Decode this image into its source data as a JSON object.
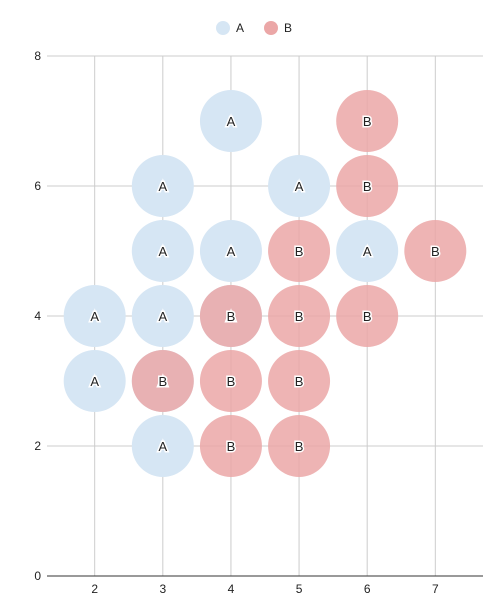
{
  "colors": {
    "A": "#d6e6f4",
    "B": "#eba7a7",
    "B_overlap": "#e6a2a3",
    "grid": "#cccccc",
    "axis": "#333333"
  },
  "legend": {
    "position": "top-center",
    "items": [
      {
        "name": "A",
        "color": "#d6e6f4"
      },
      {
        "name": "B",
        "color": "#eba7a7"
      }
    ]
  },
  "chart_data": {
    "type": "scatter",
    "title": "",
    "xlabel": "",
    "ylabel": "",
    "xlim": [
      1.3,
      7.7
    ],
    "ylim": [
      0,
      8
    ],
    "x_ticks": [
      2,
      3,
      4,
      5,
      6,
      7
    ],
    "y_ticks": [
      0,
      2,
      4,
      6,
      8
    ],
    "grid": true,
    "legend_position": "top-center",
    "series": [
      {
        "name": "A",
        "points": [
          {
            "x": 4,
            "y": 7,
            "label": "A"
          },
          {
            "x": 3,
            "y": 6,
            "label": "A"
          },
          {
            "x": 5,
            "y": 6,
            "label": "A"
          },
          {
            "x": 3,
            "y": 5,
            "label": "A"
          },
          {
            "x": 4,
            "y": 5,
            "label": "A"
          },
          {
            "x": 6,
            "y": 5,
            "label": "A"
          },
          {
            "x": 2,
            "y": 4,
            "label": "A"
          },
          {
            "x": 3,
            "y": 4,
            "label": "A"
          },
          {
            "x": 2,
            "y": 3,
            "label": "A"
          },
          {
            "x": 3,
            "y": 2,
            "label": "A"
          },
          {
            "x": 4,
            "y": 4,
            "label": "A"
          },
          {
            "x": 3,
            "y": 3,
            "label": "A"
          }
        ]
      },
      {
        "name": "B",
        "points": [
          {
            "x": 6,
            "y": 7,
            "label": "B"
          },
          {
            "x": 6,
            "y": 6,
            "label": "B"
          },
          {
            "x": 5,
            "y": 5,
            "label": "B"
          },
          {
            "x": 7,
            "y": 5,
            "label": "B"
          },
          {
            "x": 4,
            "y": 4,
            "label": "B"
          },
          {
            "x": 5,
            "y": 4,
            "label": "B"
          },
          {
            "x": 6,
            "y": 4,
            "label": "B"
          },
          {
            "x": 3,
            "y": 3,
            "label": "B"
          },
          {
            "x": 4,
            "y": 3,
            "label": "B"
          },
          {
            "x": 5,
            "y": 3,
            "label": "B"
          },
          {
            "x": 4,
            "y": 2,
            "label": "B"
          },
          {
            "x": 5,
            "y": 2,
            "label": "B"
          }
        ]
      }
    ]
  }
}
